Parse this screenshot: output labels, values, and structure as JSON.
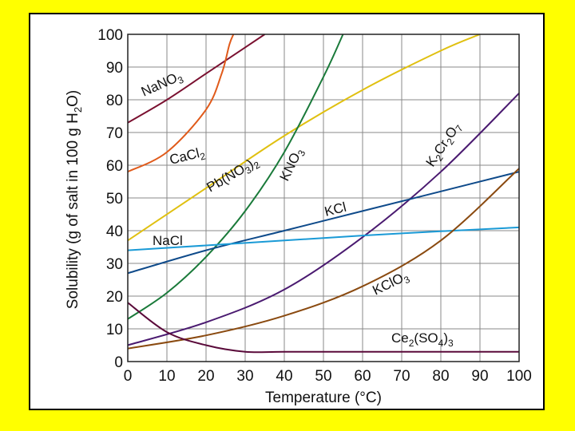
{
  "chart_data": {
    "type": "line",
    "title": "",
    "xlabel": "Temperature (°C)",
    "ylabel": "Solubility (g of salt in 100 g H2O)",
    "xlim": [
      0,
      100
    ],
    "ylim": [
      0,
      100
    ],
    "xticks": [
      0,
      10,
      20,
      30,
      40,
      50,
      60,
      70,
      80,
      90,
      100
    ],
    "yticks": [
      0,
      10,
      20,
      30,
      40,
      50,
      60,
      70,
      80,
      90,
      100
    ],
    "grid": true,
    "series": [
      {
        "name": "NaNO3",
        "color": "#7a1030",
        "x": [
          0,
          10,
          20,
          30,
          35
        ],
        "y": [
          73,
          80,
          88,
          96,
          100
        ]
      },
      {
        "name": "CaCl2",
        "color": "#e05a1a",
        "x": [
          0,
          10,
          20,
          24,
          26,
          27
        ],
        "y": [
          58,
          64,
          77,
          88,
          97,
          100
        ]
      },
      {
        "name": "Pb(NO3)2",
        "color": "#e0c010",
        "x": [
          0,
          20,
          40,
          60,
          80,
          90
        ],
        "y": [
          37,
          53,
          69,
          83,
          95,
          100
        ]
      },
      {
        "name": "KNO3",
        "color": "#1a7a3a",
        "x": [
          0,
          10,
          20,
          30,
          40,
          50,
          55
        ],
        "y": [
          13,
          21,
          32,
          46,
          64,
          87,
          100
        ]
      },
      {
        "name": "K2Cr2O7",
        "color": "#4a1a70",
        "x": [
          0,
          20,
          40,
          60,
          80,
          100
        ],
        "y": [
          5,
          12,
          22,
          38,
          58,
          82
        ]
      },
      {
        "name": "KCl",
        "color": "#0e4a8a",
        "x": [
          0,
          20,
          40,
          60,
          80,
          100
        ],
        "y": [
          27,
          34,
          40,
          46,
          52,
          58
        ]
      },
      {
        "name": "NaCl",
        "color": "#1a9ad6",
        "x": [
          0,
          20,
          40,
          60,
          80,
          100
        ],
        "y": [
          34,
          35.5,
          37,
          38.5,
          39.8,
          41
        ]
      },
      {
        "name": "KClO3",
        "color": "#8a4a10",
        "x": [
          0,
          20,
          40,
          60,
          80,
          100
        ],
        "y": [
          4,
          8,
          14,
          23,
          37,
          59
        ]
      },
      {
        "name": "Ce2(SO4)3",
        "color": "#5a0a3a",
        "x": [
          0,
          10,
          20,
          30,
          40,
          60,
          100
        ],
        "y": [
          18,
          9,
          5,
          3,
          3,
          3,
          3
        ]
      }
    ]
  },
  "labels": {
    "nano3": {
      "base": "NaNO",
      "sub": "3"
    },
    "cacl2": {
      "base": "CaCl",
      "sub": "2"
    },
    "pbno32": {
      "base": "Pb(NO",
      "sub1": "3",
      "close": ")",
      "sub2": "2"
    },
    "kno3": {
      "base": "KNO",
      "sub": "3"
    },
    "k2cr2o7": {
      "k": "K",
      "sub1": "2",
      "cr": "Cr",
      "sub2": "2",
      "o": "O",
      "sub3": "7"
    },
    "kcl": "KCl",
    "nacl": "NaCl",
    "kclo3": {
      "base": "KClO",
      "sub": "3"
    },
    "ce2so43": {
      "ce": "Ce",
      "sub1": "2",
      "mid": "(SO",
      "sub2": "4",
      "close": ")",
      "sub3": "3"
    }
  },
  "ylabel_parts": {
    "pre": "Solubility (g of salt in 100 g H",
    "sub": "2",
    "post": "O)"
  }
}
